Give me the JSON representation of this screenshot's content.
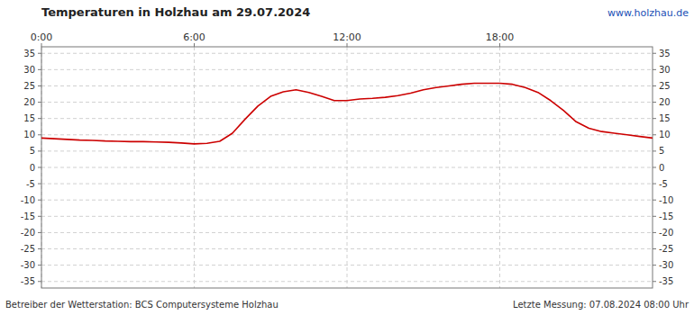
{
  "chart_data": {
    "type": "line",
    "title": "Temperaturen in Holzhau am 29.07.2024",
    "annotations": [
      "www.holzhau.de",
      "Betreiber der Wetterstation: BCS Computersysteme Holzhau",
      "Letzte Messung: 07.08.2024 08:00 Uhr"
    ],
    "x": [
      0.0,
      0.5,
      1.0,
      1.5,
      2.0,
      2.5,
      3.0,
      3.5,
      4.0,
      4.5,
      5.0,
      5.5,
      6.0,
      6.5,
      7.0,
      7.5,
      8.0,
      8.5,
      9.0,
      9.5,
      10.0,
      10.5,
      11.0,
      11.5,
      12.0,
      12.5,
      13.0,
      13.5,
      14.0,
      14.5,
      15.0,
      15.5,
      16.0,
      16.5,
      17.0,
      17.5,
      18.0,
      18.5,
      19.0,
      19.5,
      20.0,
      20.5,
      21.0,
      21.5,
      22.0,
      22.5,
      23.0,
      23.5,
      24.0
    ],
    "series": [
      {
        "color": "#cc0000",
        "values": [
          9.0,
          8.8,
          8.6,
          8.4,
          8.3,
          8.1,
          8.0,
          7.9,
          7.9,
          7.8,
          7.7,
          7.5,
          7.2,
          7.4,
          8.0,
          10.5,
          14.8,
          18.8,
          21.8,
          23.2,
          23.8,
          23.0,
          21.8,
          20.5,
          20.5,
          21.0,
          21.2,
          21.5,
          22.0,
          22.8,
          23.8,
          24.5,
          25.0,
          25.5,
          25.8,
          25.8,
          25.8,
          25.5,
          24.5,
          23.0,
          20.5,
          17.5,
          14.0,
          12.0,
          11.0,
          10.5,
          10.0,
          9.5,
          9.0
        ]
      }
    ],
    "xlim": [
      0,
      24
    ],
    "xticks": [
      {
        "value": 0,
        "label": "0:00"
      },
      {
        "value": 6,
        "label": "6:00"
      },
      {
        "value": 12,
        "label": "12:00"
      },
      {
        "value": 18,
        "label": "18:00"
      }
    ],
    "ylim": [
      -37,
      37
    ],
    "yticks": [
      -35,
      -30,
      -25,
      -20,
      -15,
      -10,
      -5,
      0,
      5,
      10,
      15,
      20,
      25,
      30,
      35
    ],
    "y2lim": [
      -37,
      37
    ],
    "y2ticks": [
      -35,
      -30,
      -25,
      -20,
      -15,
      -10,
      -5,
      0,
      5,
      10,
      15,
      20,
      25,
      30,
      35
    ],
    "grid": true
  }
}
